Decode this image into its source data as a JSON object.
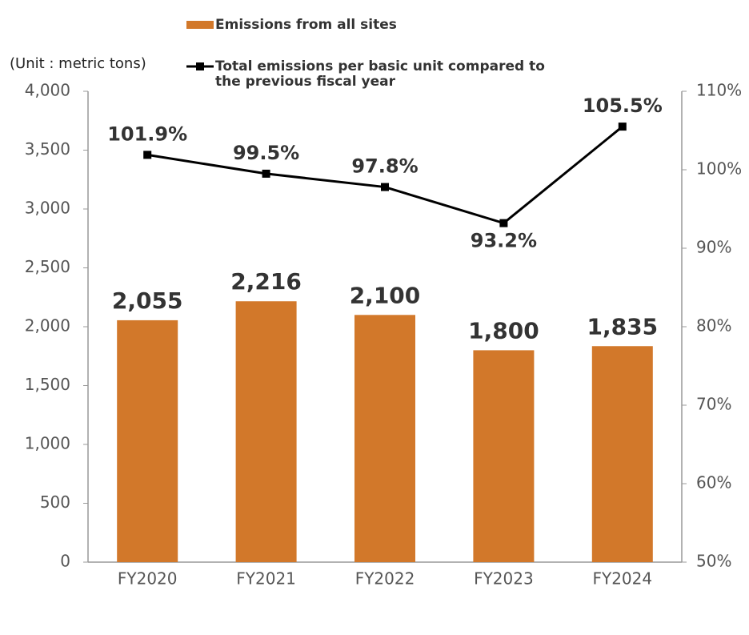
{
  "chart_data": {
    "type": "bar",
    "unit_label": "(Unit : metric tons)",
    "categories": [
      "FY2020",
      "FY2021",
      "FY2022",
      "FY2023",
      "FY2024"
    ],
    "series": [
      {
        "name": "Emissions from all sites",
        "type": "bar",
        "color": "#d2782a",
        "values": [
          2055,
          2216,
          2100,
          1800,
          1835
        ],
        "value_labels": [
          "2,055",
          "2,216",
          "2,100",
          "1,800",
          "1,835"
        ]
      },
      {
        "name": "Total emissions per basic unit compared to the previous fiscal year",
        "type": "line",
        "axis": "y2",
        "color": "#000000",
        "values": [
          101.9,
          99.5,
          97.8,
          93.2,
          105.5
        ],
        "value_labels": [
          "101.9%",
          "99.5%",
          "97.8%",
          "93.2%",
          "105.5%"
        ]
      }
    ],
    "ylim": [
      0,
      4000
    ],
    "yticks": [
      0,
      500,
      {
        "value": 1000,
        "label": "1,000"
      },
      {
        "value": 1500,
        "label": "1,500"
      },
      {
        "value": 2000,
        "label": "2,000"
      },
      {
        "value": 2500,
        "label": "2,500"
      },
      {
        "value": 3000,
        "label": "3,000"
      },
      {
        "value": 3500,
        "label": "3,500"
      },
      {
        "value": 4000,
        "label": "4,000"
      }
    ],
    "y2lim": [
      50,
      110
    ],
    "y2ticks": [
      {
        "value": 50,
        "label": "50%"
      },
      {
        "value": 60,
        "label": "60%"
      },
      {
        "value": 70,
        "label": "70%"
      },
      {
        "value": 80,
        "label": "80%"
      },
      {
        "value": 90,
        "label": "90%"
      },
      {
        "value": 100,
        "label": "100%"
      },
      {
        "value": 110,
        "label": "110%"
      }
    ],
    "grid": false
  }
}
